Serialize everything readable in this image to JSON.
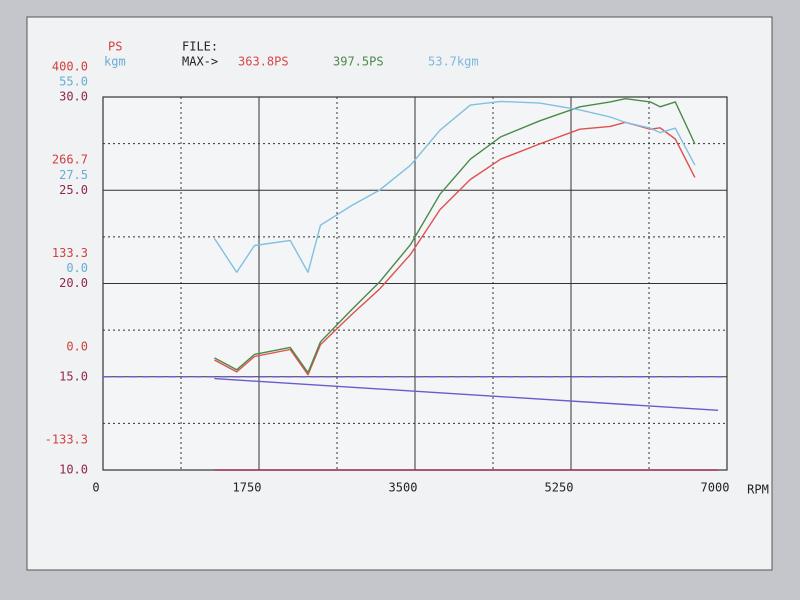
{
  "chart_data": {
    "type": "line",
    "ps_label": "PS",
    "kgm_label": "kgm",
    "file_label": "FILE:",
    "max_label": "MAX->",
    "max_values": [
      {
        "text": "363.8PS",
        "color": "#d84848"
      },
      {
        "text": "397.5PS",
        "color": "#4a8a4a"
      },
      {
        "text": "53.7kgm",
        "color": "#7ab8dc"
      }
    ],
    "xlabel": "RPM",
    "xlim": [
      0,
      7000
    ],
    "xticks": [
      0,
      1750,
      3500,
      5250,
      7000
    ],
    "ylim": [
      -133.3,
      400
    ],
    "yticks": [
      {
        "value": 400,
        "label": "400.0"
      },
      266.7,
      133.3,
      {
        "value": 0,
        "label": "0.0"
      },
      -133.3
    ],
    "y_color": "#d04040",
    "y2lim": [
      -55,
      55
    ],
    "y2ticks": [
      {
        "value": 55,
        "label": "55.0"
      },
      27.5,
      {
        "value": 0,
        "label": "0.0"
      }
    ],
    "y2_color": "#68acd4",
    "y3lim": [
      10,
      30
    ],
    "y3ticks": [
      {
        "value": 30,
        "label": "30.0"
      },
      {
        "value": 25,
        "label": "25.0"
      },
      {
        "value": 20,
        "label": "20.0"
      },
      {
        "value": 15,
        "label": "15.0"
      },
      {
        "value": 10,
        "label": "10.0"
      }
    ],
    "y3_color": "#902848",
    "grid": true,
    "minor_grid": true,
    "series": [
      {
        "color": "#e05050",
        "axis": "y",
        "x": [
          1250,
          1500,
          1700,
          2100,
          2300,
          2440,
          2790,
          3100,
          3450,
          3780,
          4120,
          4460,
          4900,
          5350,
          5690,
          5860,
          6140,
          6250,
          6420,
          6640
        ],
        "values": [
          24,
          7,
          29,
          39,
          3,
          46,
          89,
          125,
          175,
          239,
          282,
          311,
          333,
          354,
          358,
          363.8,
          354,
          356,
          340,
          285
        ]
      },
      {
        "color": "#4a8a4a",
        "axis": "y",
        "x": [
          1250,
          1500,
          1700,
          2100,
          2300,
          2440,
          2790,
          3100,
          3450,
          3780,
          4120,
          4460,
          4900,
          5350,
          5690,
          5860,
          6140,
          6250,
          6420,
          6640
        ],
        "values": [
          27,
          10,
          32,
          42,
          6,
          50,
          96,
          135,
          189,
          261,
          311,
          343,
          366,
          386,
          393,
          397.5,
          393,
          386,
          393,
          333
        ]
      },
      {
        "color": "#80c0e0",
        "axis": "y2",
        "x": [
          1250,
          1500,
          1700,
          2100,
          2300,
          2440,
          2790,
          3100,
          3450,
          3780,
          4120,
          4460,
          4900,
          5350,
          5690,
          5860,
          6140,
          6250,
          6420,
          6640
        ],
        "values": [
          13.3,
          3.3,
          11.2,
          12.7,
          3.3,
          17.2,
          23,
          27.5,
          34.9,
          45.2,
          52.6,
          53.7,
          53.2,
          51.2,
          49.1,
          47.5,
          45.8,
          44.5,
          45.8,
          34.9
        ]
      },
      {
        "color": "#6a5acd",
        "axis": "y3",
        "dashed": true,
        "x": [
          0,
          7000
        ],
        "values": [
          15,
          15
        ]
      },
      {
        "color": "#6a5acd",
        "axis": "y3",
        "x": [
          1250,
          6900
        ],
        "values": [
          14.9,
          13.2
        ]
      },
      {
        "color": "#a03050",
        "axis": "y3",
        "x": [
          1250,
          6900
        ],
        "values": [
          10,
          10
        ]
      }
    ]
  }
}
